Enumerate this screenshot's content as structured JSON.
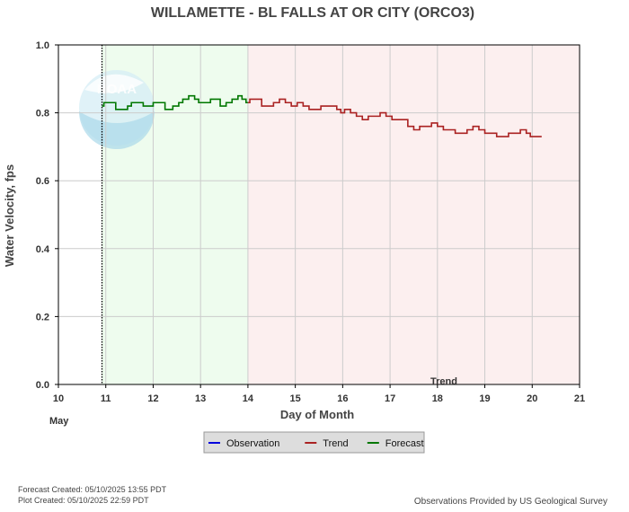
{
  "chart_data": {
    "type": "line",
    "title": "WILLAMETTE - BL FALLS AT OR CITY  (ORCO3)",
    "xlabel": "Day of Month",
    "ylabel": "Water Velocity, fps",
    "month_label": "May",
    "xlim": [
      10,
      21
    ],
    "ylim": [
      0.0,
      1.0
    ],
    "x_ticks": [
      "10",
      "11",
      "12",
      "13",
      "14",
      "15",
      "16",
      "17",
      "18",
      "19",
      "20",
      "21"
    ],
    "y_ticks": [
      "0.0",
      "0.2",
      "0.4",
      "0.6",
      "0.8",
      "1.0"
    ],
    "grid": true,
    "current_time_marker_x": 10.92,
    "regions": [
      {
        "name": "Forecast",
        "x_start": 10.92,
        "x_end": 14.0,
        "color": "#eefcee"
      },
      {
        "name": "Trend",
        "x_start": 14.0,
        "x_end": 21.0,
        "color": "#fcefef"
      }
    ],
    "region_label": "Trend",
    "legend": {
      "placement": "bottom-center",
      "entries": [
        {
          "label": "Observation",
          "color": "#0000dd"
        },
        {
          "label": "Trend",
          "color": "#aa2222"
        },
        {
          "label": "Forecast",
          "color": "#007700"
        }
      ]
    },
    "series": [
      {
        "name": "Forecast",
        "color": "#007700",
        "x": [
          10.92,
          11.0,
          11.17,
          11.25,
          11.42,
          11.5,
          11.58,
          11.75,
          11.83,
          11.92,
          12.08,
          12.17,
          12.33,
          12.5,
          12.58,
          12.67,
          12.83,
          12.92,
          13.0,
          13.17,
          13.25,
          13.33,
          13.5,
          13.58,
          13.75,
          13.83,
          13.92,
          14.0
        ],
        "y": [
          0.82,
          0.83,
          0.83,
          0.81,
          0.81,
          0.82,
          0.83,
          0.83,
          0.82,
          0.82,
          0.83,
          0.83,
          0.81,
          0.82,
          0.83,
          0.84,
          0.85,
          0.84,
          0.83,
          0.83,
          0.84,
          0.84,
          0.82,
          0.83,
          0.84,
          0.85,
          0.84,
          0.83
        ]
      },
      {
        "name": "Trend",
        "color": "#aa2222",
        "x": [
          14.0,
          14.08,
          14.25,
          14.33,
          14.5,
          14.58,
          14.75,
          14.83,
          15.0,
          15.08,
          15.25,
          15.33,
          15.5,
          15.58,
          15.83,
          15.92,
          16.0,
          16.08,
          16.25,
          16.33,
          16.5,
          16.58,
          16.75,
          16.83,
          17.0,
          17.08,
          17.33,
          17.42,
          17.58,
          17.67,
          17.83,
          17.92,
          18.08,
          18.17,
          18.33,
          18.42,
          18.58,
          18.67,
          18.83,
          18.92,
          19.08,
          19.17,
          19.33,
          19.42,
          19.58,
          19.67,
          19.83,
          19.92,
          20.0,
          20.08,
          20.2
        ],
        "y": [
          0.83,
          0.84,
          0.84,
          0.82,
          0.82,
          0.83,
          0.84,
          0.83,
          0.82,
          0.83,
          0.82,
          0.81,
          0.81,
          0.82,
          0.82,
          0.81,
          0.8,
          0.81,
          0.8,
          0.79,
          0.78,
          0.79,
          0.79,
          0.8,
          0.79,
          0.78,
          0.78,
          0.76,
          0.75,
          0.76,
          0.76,
          0.77,
          0.76,
          0.75,
          0.75,
          0.74,
          0.74,
          0.75,
          0.76,
          0.75,
          0.74,
          0.74,
          0.73,
          0.73,
          0.74,
          0.74,
          0.75,
          0.74,
          0.73,
          0.73,
          0.73
        ]
      }
    ],
    "watermark": "NOAA"
  },
  "footer": {
    "forecast_created": "Forecast Created: 05/10/2025 13:55 PDT",
    "plot_created": "Plot Created: 05/10/2025 22:59 PDT",
    "attribution": "Observations Provided by US Geological Survey"
  }
}
